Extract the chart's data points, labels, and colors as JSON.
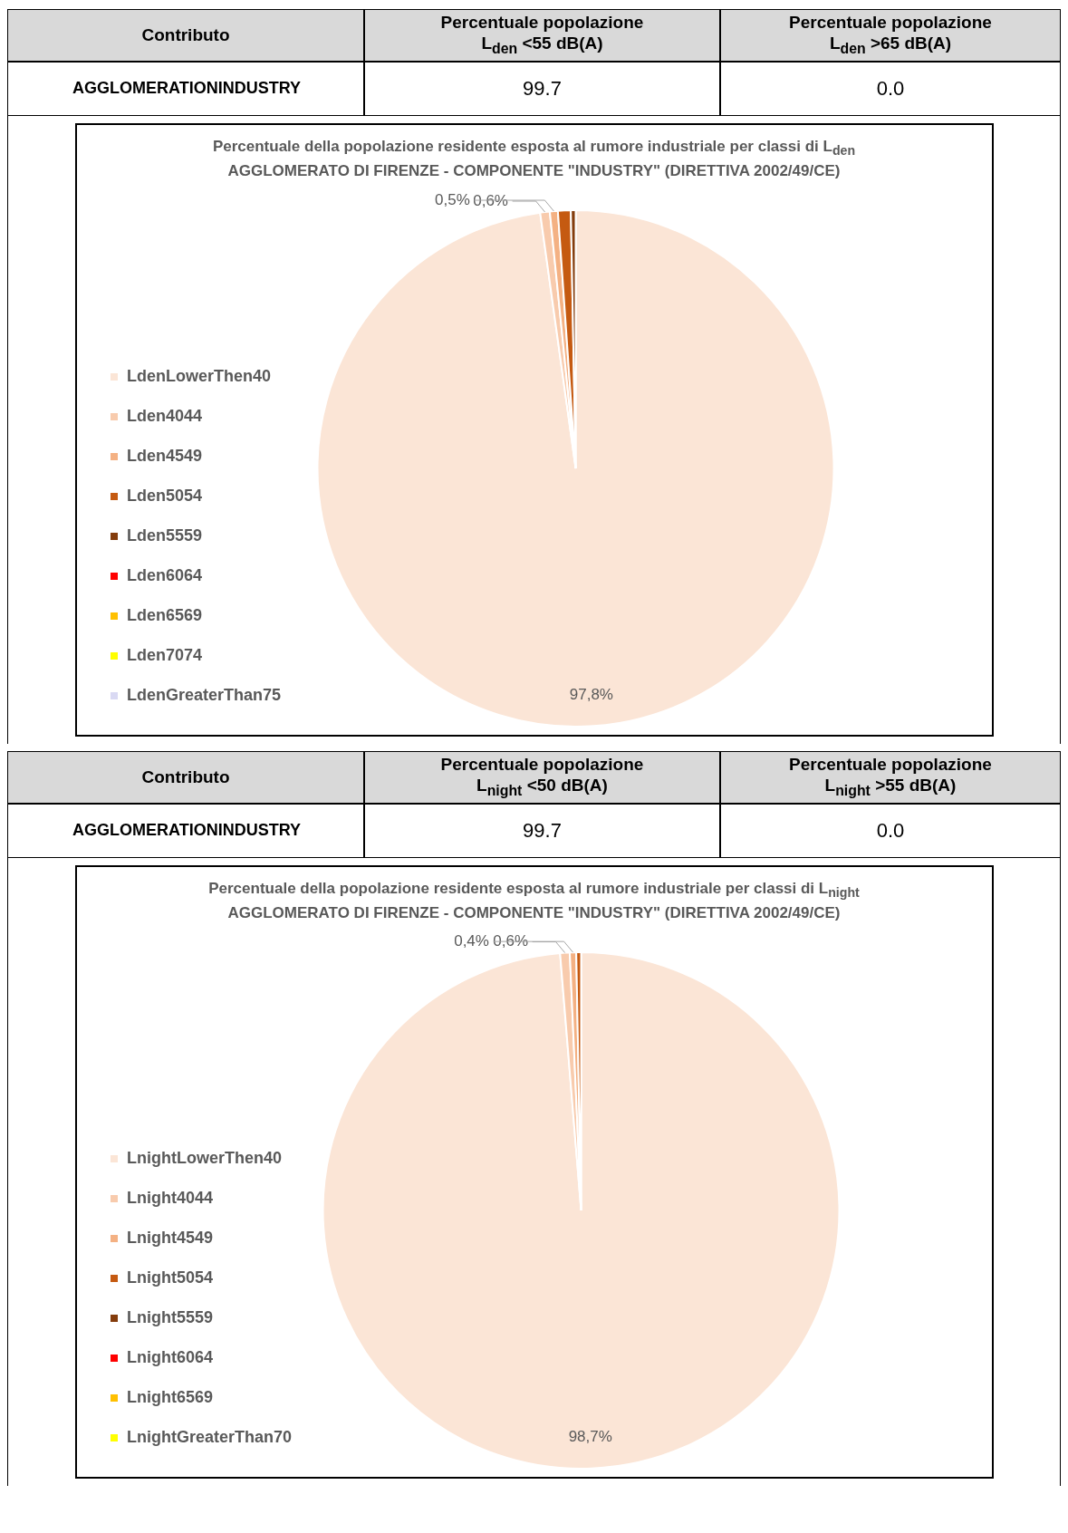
{
  "chart_data": [
    {
      "type": "other",
      "annotations": [
        "Contributo",
        "Percentuale popolazione L$_{den}$ <55 dB(A)",
        "Percentuale popolazione L$_{den}$ >65 dB(A)",
        "AGGLOMERATIONINDUSTRY",
        "99.7",
        "0.0"
      ]
    },
    {
      "type": "pie",
      "title": "Percentuale della popolazione residente esposta al rumore industriale per classi di L$_{den}$",
      "subtitle": "AGGLOMERATO DI FIRENZE - COMPONENTE \"INDUSTRY\" (DIRETTIVA 2002/49/CE)",
      "categories": [
        "LdenLowerThen40",
        "Lden4044",
        "Lden4549",
        "Lden5054",
        "Lden5559",
        "Lden6064",
        "Lden6569",
        "Lden7074",
        "LdenGreaterThan75"
      ],
      "values": [
        97.8,
        0.6,
        0.5,
        0.8,
        0.3,
        0,
        0,
        0,
        0
      ],
      "colors": [
        "#fbe5d6",
        "#f8cbad",
        "#f4b183",
        "#c55a11",
        "#843c0c",
        "#ff0000",
        "#ffc000",
        "#ffff00",
        "#d9d9f3"
      ],
      "value_labels": [
        "97,8%",
        "0,6%",
        "0,5%",
        null,
        null,
        null,
        null,
        null,
        null
      ],
      "legend": "left"
    },
    {
      "type": "other",
      "annotations": [
        "Contributo",
        "Percentuale popolazione L$_{night}$ <50 dB(A)",
        "Percentuale popolazione L$_{night}$ >55 dB(A)",
        "AGGLOMERATIONINDUSTRY",
        "99.7",
        "0.0"
      ]
    },
    {
      "type": "pie",
      "title": "Percentuale della popolazione residente esposta al rumore industriale per classi di L$_{night}$",
      "subtitle": "AGGLOMERATO DI FIRENZE - COMPONENTE \"INDUSTRY\" (DIRETTIVA 2002/49/CE)",
      "categories": [
        "LnightLowerThen40",
        "Lnight4044",
        "Lnight4549",
        "Lnight5054",
        "Lnight5559",
        "Lnight6064",
        "Lnight6569",
        "LnightGreaterThan70"
      ],
      "values": [
        98.7,
        0.6,
        0.4,
        0.3,
        0,
        0,
        0,
        0
      ],
      "colors": [
        "#fbe5d6",
        "#f8cbad",
        "#f4b183",
        "#c55a11",
        "#843c0c",
        "#ff0000",
        "#ffc000",
        "#ffff00"
      ],
      "value_labels": [
        "98,7%",
        "0,6%",
        "0,4%",
        null,
        null,
        null,
        null,
        null
      ],
      "legend": "left"
    }
  ]
}
